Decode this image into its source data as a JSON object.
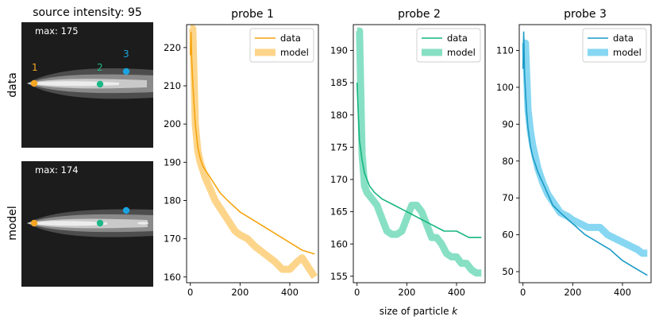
{
  "figure": {
    "left_title": "source intensity: 95",
    "shared_xlabel": "size of particle ",
    "shared_xlabel_italic": "k"
  },
  "images": [
    {
      "row_label": "data",
      "max_label": "max: 175",
      "points": [
        {
          "id": "1",
          "color": "#f5a623"
        },
        {
          "id": "2",
          "color": "#1db887"
        },
        {
          "id": "3",
          "color": "#1aa3e0"
        }
      ]
    },
    {
      "row_label": "model",
      "max_label": "max: 174",
      "points": [
        {
          "id": "1",
          "color": "#f5a623"
        },
        {
          "id": "2",
          "color": "#1db887"
        },
        {
          "id": "3",
          "color": "#1aa3e0"
        }
      ]
    }
  ],
  "chart_data": [
    {
      "type": "line",
      "title": "probe 1",
      "xlabel": "",
      "ylabel": "",
      "xlim": [
        -15,
        515
      ],
      "ylim": [
        158.5,
        226
      ],
      "xticks": [
        0,
        200,
        400
      ],
      "yticks": [
        160,
        170,
        180,
        190,
        200,
        210,
        220
      ],
      "legend": {
        "position": "top-right",
        "entries": [
          "data",
          "model"
        ]
      },
      "series": [
        {
          "name": "data",
          "color": "#f5a40e",
          "x": [
            0,
            3,
            6,
            10,
            15,
            20,
            30,
            40,
            50,
            60,
            80,
            100,
            120,
            150,
            200,
            250,
            300,
            350,
            400,
            450,
            500
          ],
          "y": [
            218,
            224,
            216,
            211,
            205,
            200,
            194,
            191,
            189,
            188,
            186,
            184,
            182,
            180,
            177,
            175,
            173,
            171,
            169,
            167,
            166
          ]
        },
        {
          "name": "model",
          "color": "#fdd58a",
          "x": [
            0,
            10,
            20,
            30,
            40,
            50,
            60,
            80,
            100,
            120,
            150,
            180,
            200,
            230,
            260,
            300,
            340,
            370,
            400,
            430,
            450,
            470,
            490,
            500
          ],
          "y": [
            225,
            225,
            200,
            193,
            190,
            188,
            186,
            183,
            180,
            178,
            175,
            172,
            171,
            170,
            168,
            166,
            164,
            162,
            162,
            164,
            165,
            163,
            161,
            160
          ]
        }
      ]
    },
    {
      "type": "line",
      "title": "probe 2",
      "xlabel": "",
      "ylabel": "",
      "xlim": [
        -15,
        515
      ],
      "ylim": [
        154,
        194
      ],
      "xticks": [
        0,
        200,
        400
      ],
      "yticks": [
        155,
        160,
        165,
        170,
        175,
        180,
        185,
        190
      ],
      "legend": {
        "position": "top-right",
        "entries": [
          "data",
          "model"
        ]
      },
      "series": [
        {
          "name": "data",
          "color": "#16b57d",
          "x": [
            0,
            5,
            10,
            20,
            30,
            40,
            50,
            70,
            100,
            150,
            200,
            250,
            300,
            350,
            400,
            450,
            500
          ],
          "y": [
            185,
            180,
            176,
            173,
            171,
            170,
            169,
            168,
            167,
            166,
            165,
            164,
            163,
            162,
            162,
            161,
            161
          ]
        },
        {
          "name": "model",
          "color": "#88e0c4",
          "x": [
            0,
            10,
            20,
            30,
            40,
            60,
            80,
            100,
            120,
            140,
            160,
            180,
            200,
            220,
            240,
            260,
            280,
            300,
            320,
            340,
            360,
            380,
            400,
            420,
            440,
            460,
            480,
            500
          ],
          "y": [
            193,
            193,
            174,
            169,
            168,
            167,
            166,
            164,
            162,
            161.5,
            161.5,
            162,
            164,
            166,
            166,
            165,
            163,
            161,
            161,
            160,
            158.5,
            158,
            158,
            157,
            157,
            156,
            155.5,
            155.5
          ]
        }
      ]
    },
    {
      "type": "line",
      "title": "probe 3",
      "xlabel": "",
      "ylabel": "",
      "xlim": [
        -15,
        515
      ],
      "ylim": [
        47,
        117
      ],
      "xticks": [
        0,
        200,
        400
      ],
      "yticks": [
        50,
        60,
        70,
        80,
        90,
        100,
        110
      ],
      "legend": {
        "position": "top-right",
        "entries": [
          "data",
          "model"
        ]
      },
      "series": [
        {
          "name": "data",
          "color": "#1a9ac6",
          "x": [
            0,
            3,
            6,
            10,
            15,
            20,
            30,
            40,
            50,
            60,
            80,
            100,
            120,
            150,
            200,
            250,
            300,
            350,
            400,
            450,
            500
          ],
          "y": [
            105,
            115,
            104,
            99,
            93,
            89,
            84,
            81,
            79,
            77,
            74,
            71,
            68,
            66,
            63,
            60,
            58,
            56,
            53,
            51,
            49
          ]
        },
        {
          "name": "model",
          "color": "#87d7f2",
          "x": [
            0,
            10,
            20,
            30,
            40,
            50,
            60,
            80,
            100,
            120,
            150,
            180,
            200,
            230,
            260,
            290,
            310,
            340,
            370,
            400,
            430,
            460,
            480,
            500
          ],
          "y": [
            112,
            112,
            94,
            88,
            84,
            81,
            78,
            74,
            71,
            69,
            66,
            65,
            64,
            63,
            62,
            62,
            62,
            60,
            59,
            58,
            57,
            56,
            55,
            55
          ]
        }
      ]
    }
  ]
}
